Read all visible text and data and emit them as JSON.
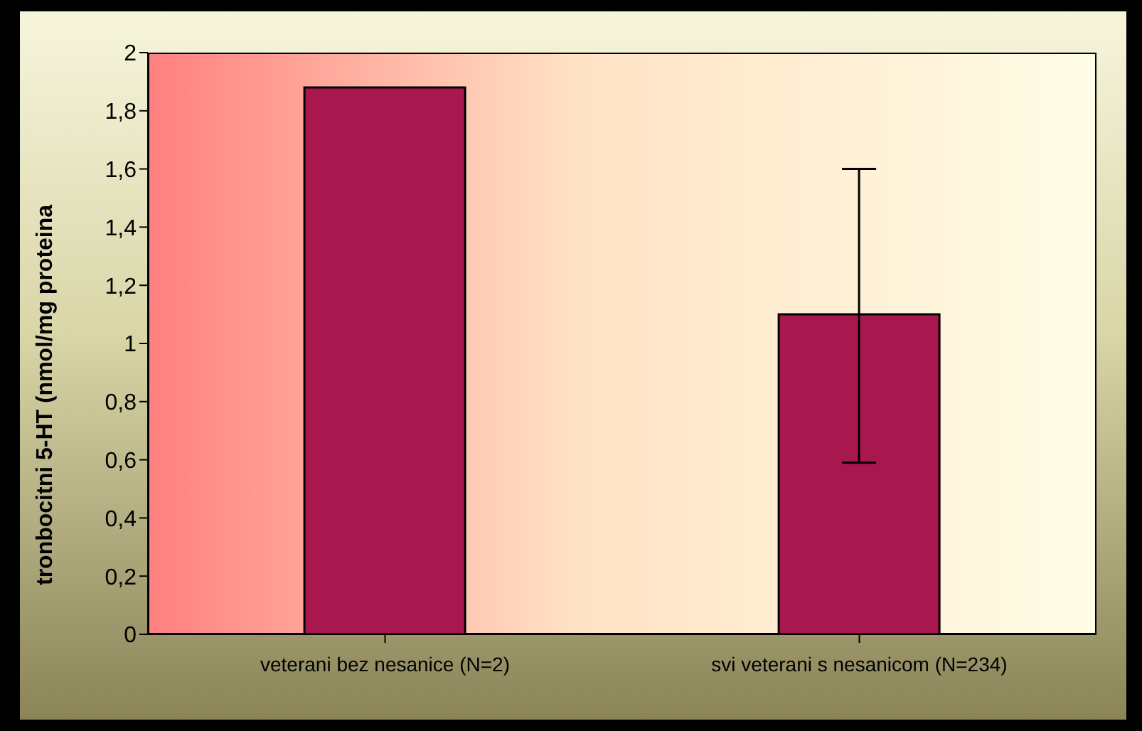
{
  "chart_data": {
    "type": "bar",
    "ylabel": "tronbocitni 5-HT (nmol/mg proteina",
    "categories": [
      "veterani bez nesanice (N=2)",
      "svi veterani s nesanicom (N=234)"
    ],
    "values": [
      1.88,
      1.1
    ],
    "errors": [
      null,
      [
        0.59,
        1.6
      ]
    ],
    "color": "#a8184f",
    "ylim": [
      0,
      2
    ],
    "yticks": [
      0,
      {
        "value": 0.2,
        "label": "0,2"
      },
      {
        "value": 0.4,
        "label": "0,4"
      },
      {
        "value": 0.6,
        "label": "0,6"
      },
      {
        "value": 0.8,
        "label": "0,8"
      },
      1,
      {
        "value": 1.2,
        "label": "1,2"
      },
      {
        "value": 1.4,
        "label": "1,4"
      },
      {
        "value": 1.6,
        "label": "1,6"
      },
      {
        "value": 1.8,
        "label": "1,8"
      },
      2
    ],
    "grid": false,
    "legend": false
  }
}
